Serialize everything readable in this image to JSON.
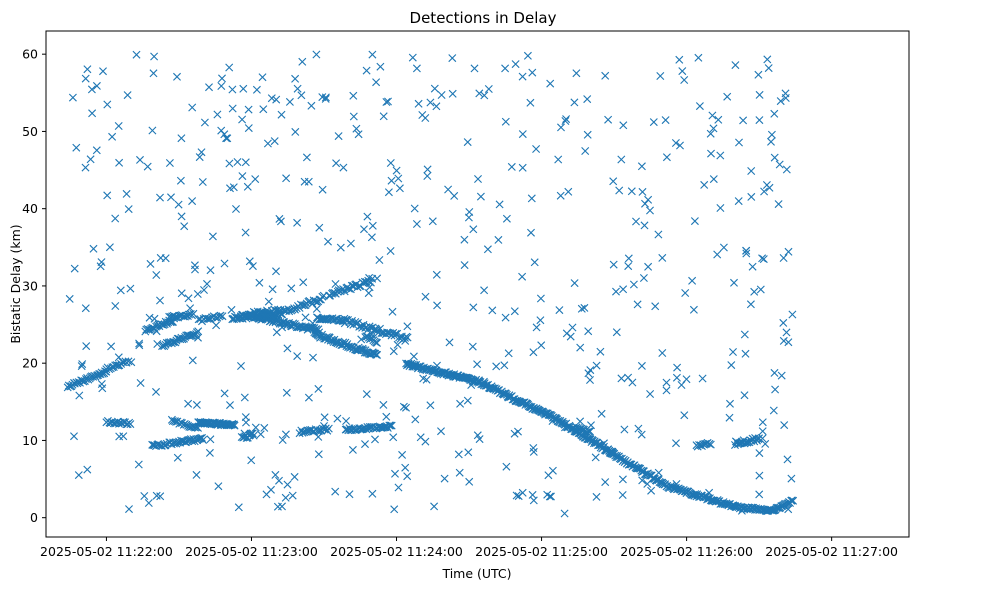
{
  "chart_data": {
    "type": "scatter",
    "title": "Detections in Delay",
    "xlabel": "Time (UTC)",
    "ylabel": "Bistatic Delay (km)",
    "marker": "x",
    "color": "#1f77b4",
    "grid": false,
    "xlim_seconds_after_112200": [
      -25,
      332
    ],
    "ylim": [
      -2.5,
      63
    ],
    "x_ticks": [
      {
        "label": "2025-05-02 11:22:00",
        "t": 0
      },
      {
        "label": "2025-05-02 11:23:00",
        "t": 60
      },
      {
        "label": "2025-05-02 11:24:00",
        "t": 120
      },
      {
        "label": "2025-05-02 11:25:00",
        "t": 180
      },
      {
        "label": "2025-05-02 11:26:00",
        "t": 240
      },
      {
        "label": "2025-05-02 11:27:00",
        "t": 300
      }
    ],
    "y_ticks": [
      0,
      10,
      20,
      30,
      40,
      50,
      60
    ],
    "series": [
      {
        "name": "detections",
        "segments": [
          {
            "t_start": -16,
            "t_end": 0,
            "step": 0.5,
            "y": [
              17,
              18.9
            ],
            "jitter": 0.15
          },
          {
            "t_start": 0,
            "t_end": 9,
            "step": 0.6,
            "y": [
              19.2,
              20.3
            ],
            "jitter": 0.2
          },
          {
            "t_start": 23,
            "t_end": 38,
            "step": 0.5,
            "y": [
              22.2,
              24.0
            ],
            "jitter": 0.2
          },
          {
            "t_start": 16,
            "t_end": 28,
            "step": 0.5,
            "y": [
              24.2,
              25.6
            ],
            "jitter": 0.2
          },
          {
            "t_start": 26,
            "t_end": 36,
            "step": 0.6,
            "y": [
              25.9,
              26.4
            ],
            "jitter": 0.2
          },
          {
            "t_start": 38,
            "t_end": 48,
            "step": 0.7,
            "y": [
              25.5,
              26.2
            ],
            "jitter": 0.2
          },
          {
            "t_start": 52,
            "t_end": 70,
            "step": 0.4,
            "y": [
              25.8,
              26.3
            ],
            "jitter": 0.2
          },
          {
            "t_start": 56,
            "t_end": 72,
            "step": 0.5,
            "y": [
              26.2,
              26.8
            ],
            "jitter": 0.25
          },
          {
            "t_start": 62,
            "t_end": 88,
            "step": 0.4,
            "y": [
              26.0,
              24.2
            ],
            "jitter": 0.25
          },
          {
            "t_start": 86,
            "t_end": 112,
            "step": 0.4,
            "y": [
              23.8,
              21.0
            ],
            "jitter": 0.25
          },
          {
            "t_start": 98,
            "t_end": 124,
            "step": 0.6,
            "y": [
              25.5,
              23.2
            ],
            "jitter": 0.3
          },
          {
            "t_start": 68,
            "t_end": 90,
            "step": 0.6,
            "y": [
              26.0,
              28.5
            ],
            "jitter": 0.25
          },
          {
            "t_start": 92,
            "t_end": 110,
            "step": 0.6,
            "y": [
              28.8,
              30.7
            ],
            "jitter": 0.25
          },
          {
            "t_start": 87,
            "t_end": 99,
            "step": 0.5,
            "y": [
              25.8,
              25.6
            ],
            "jitter": 0.15
          },
          {
            "t_start": 0,
            "t_end": 10,
            "step": 0.6,
            "y": [
              12.4,
              12.2
            ],
            "jitter": 0.15
          },
          {
            "t_start": 38,
            "t_end": 53,
            "step": 0.3,
            "y": [
              12.3,
              12.0
            ],
            "jitter": 0.15
          },
          {
            "t_start": 26,
            "t_end": 40,
            "step": 0.5,
            "y": [
              9.6,
              10.2
            ],
            "jitter": 0.2
          },
          {
            "t_start": 27,
            "t_end": 38,
            "step": 0.6,
            "y": [
              12.6,
              11.5
            ],
            "jitter": 0.15
          },
          {
            "t_start": 56,
            "t_end": 61,
            "step": 0.5,
            "y": [
              10.3,
              10.8
            ],
            "jitter": 0.2
          },
          {
            "t_start": 80,
            "t_end": 92,
            "step": 0.6,
            "y": [
              11.1,
              11.4
            ],
            "jitter": 0.2
          },
          {
            "t_start": 99,
            "t_end": 118,
            "step": 0.5,
            "y": [
              11.4,
              11.8
            ],
            "jitter": 0.15
          },
          {
            "t_start": 19,
            "t_end": 25,
            "step": 0.5,
            "y": [
              9.3,
              9.5
            ],
            "jitter": 0.2
          },
          {
            "t_start": 107,
            "t_end": 112,
            "step": 0.5,
            "y": [
              23.5,
              22.8
            ],
            "jitter": 0.2
          },
          {
            "t_start": 124,
            "t_end": 154,
            "step": 0.35,
            "y": [
              19.9,
              17.6
            ],
            "jitter": 0.2
          },
          {
            "t_start": 154,
            "t_end": 186,
            "step": 0.35,
            "y": [
              17.6,
              12.8
            ],
            "jitter": 0.2
          },
          {
            "t_start": 186,
            "t_end": 210,
            "step": 0.35,
            "y": [
              12.8,
              8.2
            ],
            "jitter": 0.2
          },
          {
            "t_start": 208,
            "t_end": 230,
            "step": 0.4,
            "y": [
              8.5,
              4.5
            ],
            "jitter": 0.2
          },
          {
            "t_start": 230,
            "t_end": 260,
            "step": 0.4,
            "y": [
              4.3,
              1.4
            ],
            "jitter": 0.2
          },
          {
            "t_start": 260,
            "t_end": 276,
            "step": 0.4,
            "y": [
              1.4,
              0.9
            ],
            "jitter": 0.15
          },
          {
            "t_start": 276,
            "t_end": 284,
            "step": 0.4,
            "y": [
              1.0,
              2.2
            ],
            "jitter": 0.15
          },
          {
            "t_start": 244,
            "t_end": 250,
            "step": 0.6,
            "y": [
              9.3,
              9.6
            ],
            "jitter": 0.15
          },
          {
            "t_start": 260,
            "t_end": 270,
            "step": 0.4,
            "y": [
              9.6,
              10.2
            ],
            "jitter": 0.25
          },
          {
            "t_start": 194,
            "t_end": 200,
            "step": 0.6,
            "y": [
              11.6,
              11.2
            ],
            "jitter": 0.2
          }
        ],
        "scatter": {
          "count": 560,
          "t_range": [
            -16,
            284
          ],
          "y_range": [
            0.5,
            60
          ],
          "seed": 20250502
        }
      }
    ]
  }
}
